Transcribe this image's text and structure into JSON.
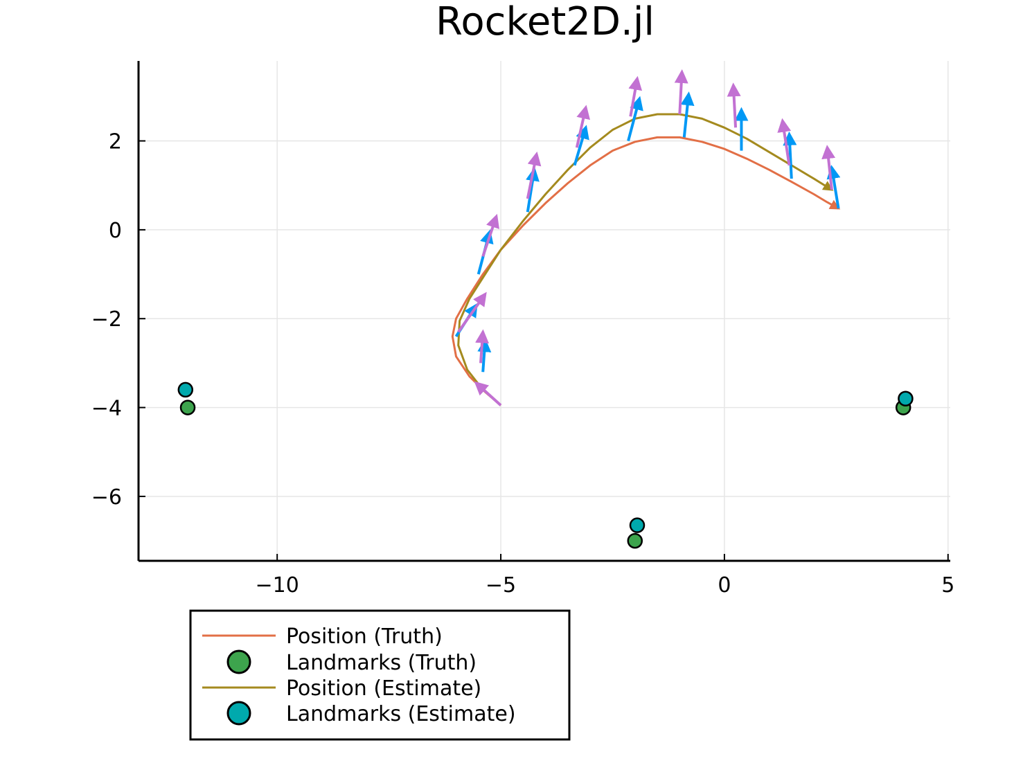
{
  "chart_data": {
    "type": "line",
    "title": "Rocket2D.jl",
    "xlabel": "",
    "ylabel": "",
    "xlim": [
      -13.1,
      5.05
    ],
    "ylim": [
      -7.45,
      3.8
    ],
    "grid": true,
    "x_ticks": [
      -10,
      -5,
      0,
      5
    ],
    "y_ticks": [
      -6,
      -4,
      -2,
      0,
      2
    ],
    "x_tick_labels": [
      "−10",
      "−5",
      "0",
      "5"
    ],
    "y_tick_labels": [
      "−6",
      "−4",
      "−2",
      "0",
      "2"
    ],
    "legend_position": "bottom-left, outside plot area",
    "series": [
      {
        "name": "Position (Truth)",
        "kind": "line",
        "color": "#e26f46",
        "x": [
          -5.0,
          -5.35,
          -5.7,
          -6.0,
          -6.08,
          -6.0,
          -5.75,
          -5.4,
          -5.0,
          -4.5,
          -4.0,
          -3.5,
          -3.0,
          -2.5,
          -2.0,
          -1.5,
          -1.0,
          -0.5,
          0.0,
          0.5,
          1.0,
          1.5,
          2.0,
          2.3,
          2.55
        ],
        "y": [
          -3.95,
          -3.65,
          -3.3,
          -2.85,
          -2.4,
          -2.0,
          -1.55,
          -1.0,
          -0.45,
          0.1,
          0.6,
          1.05,
          1.45,
          1.78,
          1.98,
          2.08,
          2.08,
          1.98,
          1.82,
          1.6,
          1.35,
          1.08,
          0.8,
          0.62,
          0.48
        ]
      },
      {
        "name": "Landmarks (Truth)",
        "kind": "scatter",
        "color": "#3da44d",
        "x": [
          -12.0,
          -2.0,
          4.0
        ],
        "y": [
          -4.0,
          -7.0,
          -4.0
        ]
      },
      {
        "name": "Position (Estimate)",
        "kind": "line",
        "color": "#a48a1e",
        "x": [
          -5.0,
          -5.4,
          -5.75,
          -5.95,
          -5.92,
          -5.7,
          -5.35,
          -5.0,
          -4.5,
          -4.0,
          -3.5,
          -3.0,
          -2.5,
          -2.0,
          -1.5,
          -1.0,
          -0.5,
          0.0,
          0.5,
          1.0,
          1.5,
          2.0,
          2.4
        ],
        "y": [
          -3.95,
          -3.6,
          -3.15,
          -2.6,
          -2.05,
          -1.55,
          -1.0,
          -0.45,
          0.2,
          0.8,
          1.35,
          1.85,
          2.25,
          2.5,
          2.6,
          2.6,
          2.5,
          2.3,
          2.05,
          1.75,
          1.45,
          1.15,
          0.9
        ]
      },
      {
        "name": "Landmarks (Estimate)",
        "kind": "scatter",
        "color": "#00a9ad",
        "x": [
          -12.05,
          -1.95,
          4.05
        ],
        "y": [
          -3.6,
          -6.65,
          -3.8
        ]
      }
    ],
    "heading_arrows_truth": {
      "color": "#0098f5",
      "segments": [
        {
          "x0": -5.4,
          "y0": -3.2,
          "x1": -5.35,
          "y1": -2.5
        },
        {
          "x0": -6.0,
          "y0": -2.4,
          "x1": -5.55,
          "y1": -1.7
        },
        {
          "x0": -5.5,
          "y0": -1.0,
          "x1": -5.25,
          "y1": -0.05
        },
        {
          "x0": -4.4,
          "y0": 0.4,
          "x1": -4.25,
          "y1": 1.35
        },
        {
          "x0": -3.35,
          "y0": 1.45,
          "x1": -3.1,
          "y1": 2.3
        },
        {
          "x0": -2.15,
          "y0": 2.0,
          "x1": -1.9,
          "y1": 2.95
        },
        {
          "x0": -0.9,
          "y0": 2.08,
          "x1": -0.8,
          "y1": 3.05
        },
        {
          "x0": 0.38,
          "y0": 1.78,
          "x1": 0.38,
          "y1": 2.7
        },
        {
          "x0": 1.5,
          "y0": 1.15,
          "x1": 1.45,
          "y1": 2.15
        },
        {
          "x0": 2.55,
          "y0": 0.48,
          "x1": 2.4,
          "y1": 1.4
        }
      ]
    },
    "heading_arrows_estimate": {
      "color": "#c271d2",
      "segments": [
        {
          "x0": -5.0,
          "y0": -3.95,
          "x1": -5.55,
          "y1": -3.45
        },
        {
          "x0": -5.45,
          "y0": -3.0,
          "x1": -5.4,
          "y1": -2.3
        },
        {
          "x0": -5.95,
          "y0": -2.3,
          "x1": -5.35,
          "y1": -1.45
        },
        {
          "x0": -5.4,
          "y0": -0.6,
          "x1": -5.1,
          "y1": 0.3
        },
        {
          "x0": -4.4,
          "y0": 0.7,
          "x1": -4.2,
          "y1": 1.7
        },
        {
          "x0": -3.3,
          "y0": 1.85,
          "x1": -3.1,
          "y1": 2.75
        },
        {
          "x0": -2.1,
          "y0": 2.55,
          "x1": -1.95,
          "y1": 3.4
        },
        {
          "x0": -1.0,
          "y0": 2.6,
          "x1": -0.95,
          "y1": 3.55
        },
        {
          "x0": 0.25,
          "y0": 2.3,
          "x1": 0.2,
          "y1": 3.25
        },
        {
          "x0": 1.45,
          "y0": 1.45,
          "x1": 1.3,
          "y1": 2.45
        },
        {
          "x0": 2.4,
          "y0": 0.9,
          "x1": 2.3,
          "y1": 1.85
        }
      ]
    }
  },
  "legend": {
    "items": [
      {
        "label": "Position (Truth)",
        "kind": "line",
        "color": "#e26f46"
      },
      {
        "label": "Landmarks (Truth)",
        "kind": "marker",
        "color": "#3da44d"
      },
      {
        "label": "Position (Estimate)",
        "kind": "line",
        "color": "#a48a1e"
      },
      {
        "label": "Landmarks (Estimate)",
        "kind": "marker",
        "color": "#00a9ad"
      }
    ]
  }
}
